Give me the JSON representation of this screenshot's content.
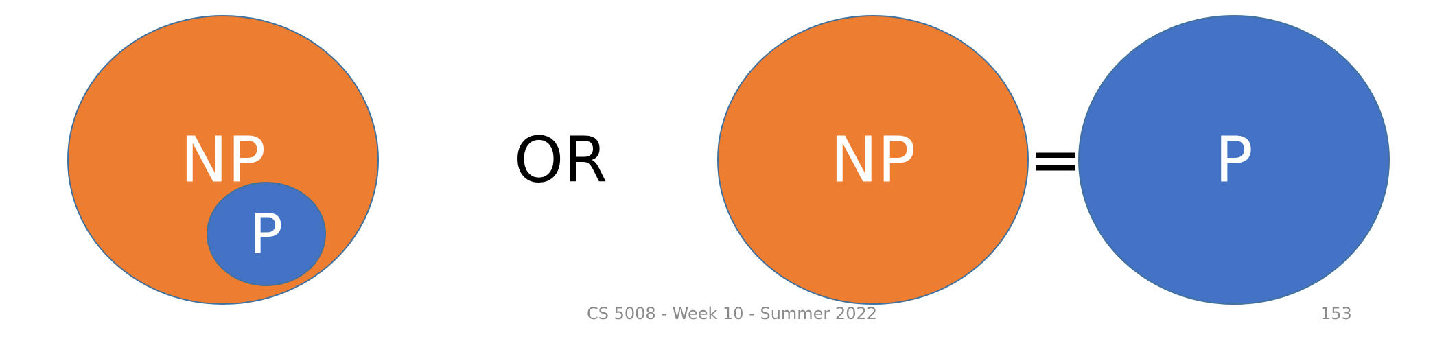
{
  "diagram": {
    "left": {
      "outer_label": "NP",
      "inner_label": "P"
    },
    "connector_label": "OR",
    "right": {
      "np_label": "NP",
      "equals_label": "=",
      "p_label": "P"
    }
  },
  "footer": {
    "course_text": "CS 5008 - Week 10 - Summer 2022",
    "page_number": "153"
  },
  "colors": {
    "np_fill": "#ED7D31",
    "p_fill": "#4472C4",
    "outline": "#41719C",
    "footer_text": "#8A8A8A"
  }
}
